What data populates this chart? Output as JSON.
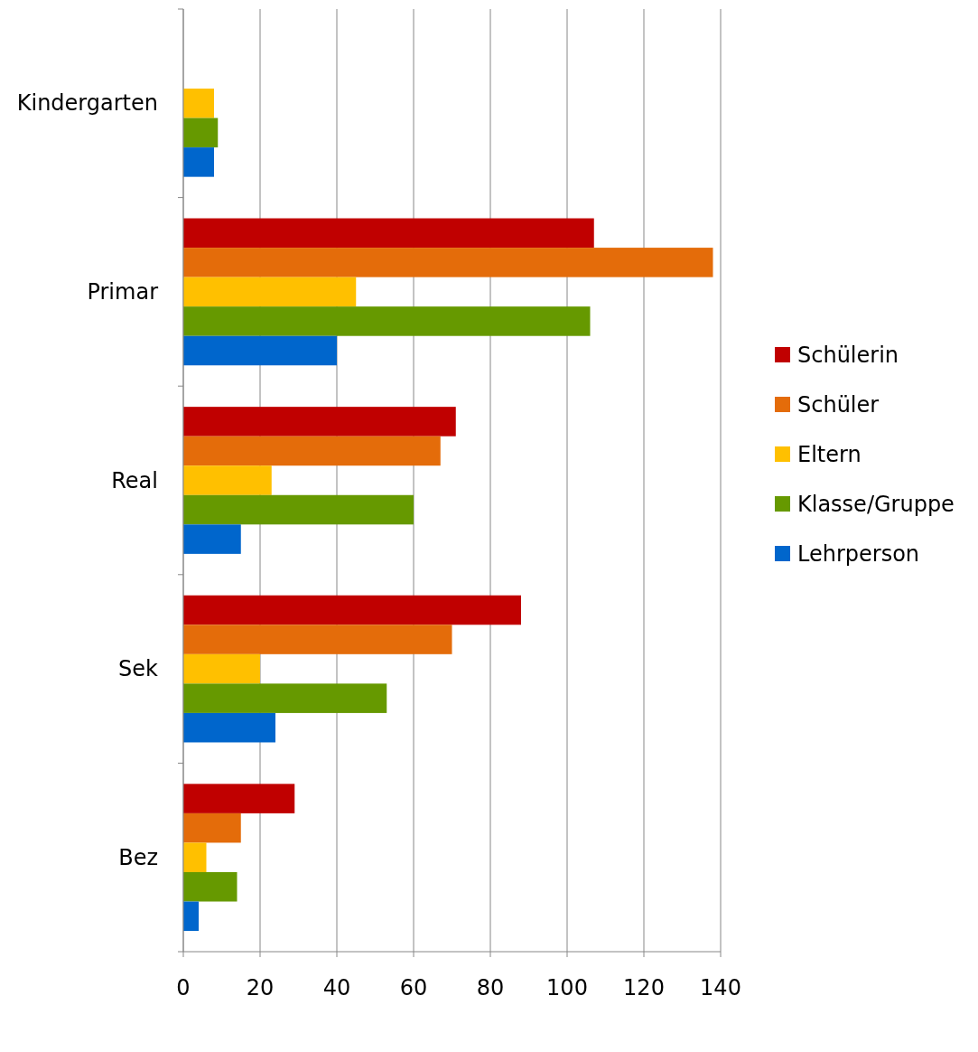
{
  "chart_data": {
    "type": "bar",
    "orientation": "horizontal",
    "categories": [
      "Kindergarten",
      "Primar",
      "Real",
      "Sek",
      "Bez"
    ],
    "series": [
      {
        "name": "Schülerin",
        "color": "#c00000",
        "values": [
          0,
          107,
          71,
          88,
          29
        ]
      },
      {
        "name": "Schüler",
        "color": "#e46c0a",
        "values": [
          0,
          138,
          67,
          70,
          15
        ]
      },
      {
        "name": "Eltern",
        "color": "#ffc000",
        "values": [
          8,
          45,
          23,
          20,
          6
        ]
      },
      {
        "name": "Klasse/Gruppe",
        "color": "#669900",
        "values": [
          9,
          106,
          60,
          53,
          14
        ]
      },
      {
        "name": "Lehrperson",
        "color": "#0066cc",
        "values": [
          8,
          40,
          15,
          24,
          4
        ]
      }
    ],
    "xlim": [
      0,
      140
    ],
    "xticks": [
      0,
      20,
      40,
      60,
      80,
      100,
      120,
      140
    ],
    "grid": "x",
    "legend": "right"
  }
}
